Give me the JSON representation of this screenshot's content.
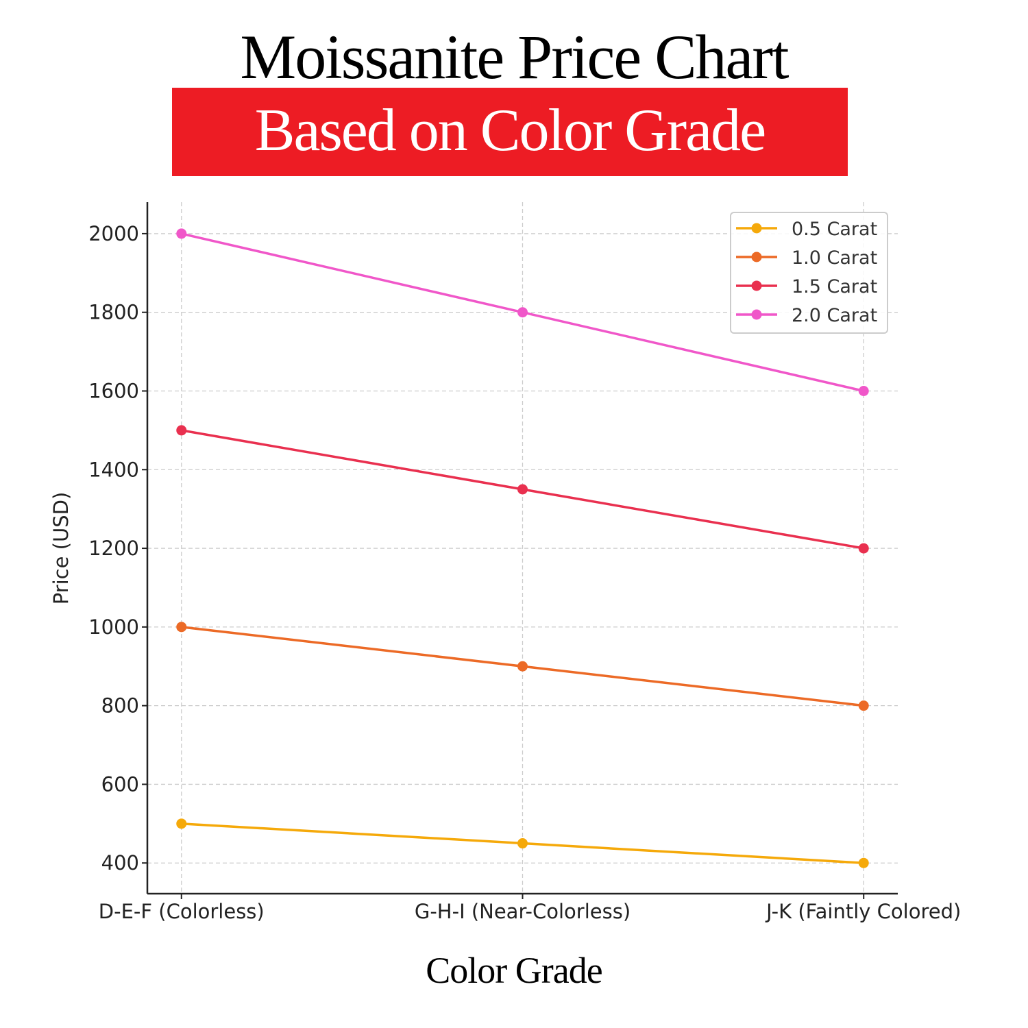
{
  "chart_data": {
    "type": "line",
    "title": "Moissanite Price Chart",
    "subtitle": "Based on Color Grade",
    "xlabel": "Color Grade",
    "ylabel": "Price (USD)",
    "categories": [
      "D-E-F (Colorless)",
      "G-H-I (Near-Colorless)",
      "J-K (Faintly Colored)"
    ],
    "yticks": [
      400,
      600,
      800,
      1000,
      1200,
      1400,
      1600,
      1800,
      2000
    ],
    "ylim": [
      322,
      2080
    ],
    "grid": true,
    "legend_position": "top-right",
    "banner_color": "#ED1C24",
    "series": [
      {
        "name": "0.5 Carat",
        "values": [
          500,
          450,
          400
        ],
        "color": "#F5A90A"
      },
      {
        "name": "1.0 Carat",
        "values": [
          1000,
          900,
          800
        ],
        "color": "#EC6A26"
      },
      {
        "name": "1.5 Carat",
        "values": [
          1500,
          1350,
          1200
        ],
        "color": "#E9304F"
      },
      {
        "name": "2.0 Carat",
        "values": [
          2000,
          1800,
          1600
        ],
        "color": "#F057C9"
      }
    ]
  }
}
